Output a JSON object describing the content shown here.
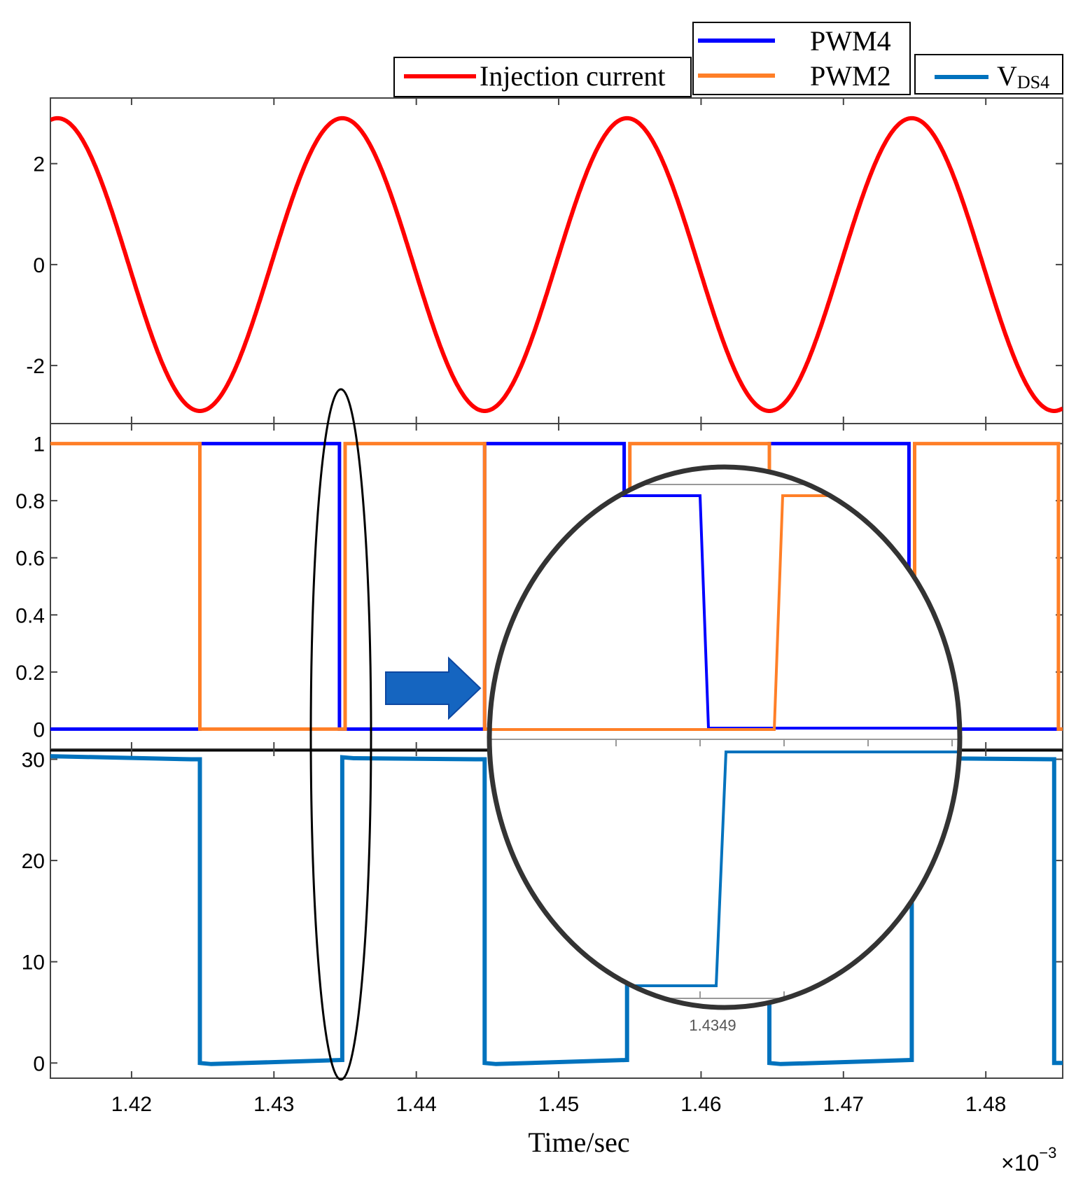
{
  "chart_data": {
    "type": "line",
    "xlabel": "Time/sec",
    "x_exponent_label": "×10",
    "x_exponent_power": "−3",
    "xlim": [
      1.4143,
      1.4854
    ],
    "x_ticks": [
      1.42,
      1.43,
      1.44,
      1.45,
      1.46,
      1.47,
      1.48
    ],
    "x_tick_labels": [
      "1.42",
      "1.43",
      "1.44",
      "1.45",
      "1.46",
      "1.47",
      "1.48"
    ],
    "period": 0.02,
    "panels": [
      {
        "name": "injection-current",
        "ylim": [
          -3.15,
          3.3
        ],
        "y_ticks": [
          -2,
          0,
          2
        ],
        "y_tick_labels": [
          "-2",
          "0",
          "2"
        ],
        "series": [
          {
            "name": "Injection current",
            "color": "#ff0000",
            "peak_times": [
              1.4348,
              1.4548,
              1.4748
            ],
            "trough_times": [
              1.4248,
              1.4448,
              1.4648,
              1.4848
            ],
            "amplitude": 2.9
          }
        ]
      },
      {
        "name": "pwm",
        "ylim": [
          -0.07,
          1.07
        ],
        "y_ticks": [
          0,
          0.2,
          0.4,
          0.6,
          0.8,
          1
        ],
        "y_tick_labels": [
          "0",
          "0.2",
          "0.4",
          "0.6",
          "0.8",
          "1"
        ],
        "series": [
          {
            "name": "PWM4",
            "color": "#0000ff",
            "high_intervals": [
              [
                1.4248,
                1.4346
              ],
              [
                1.4448,
                1.4546
              ],
              [
                1.4648,
                1.4746
              ]
            ]
          },
          {
            "name": "PWM2",
            "color": "#ff7f27",
            "high_intervals": [
              [
                1.4143,
                1.4248
              ],
              [
                1.435,
                1.4448
              ],
              [
                1.455,
                1.4648
              ],
              [
                1.475,
                1.4851
              ]
            ]
          }
        ]
      },
      {
        "name": "vds4",
        "ylim": [
          -1.5,
          31.0
        ],
        "y_ticks": [
          0,
          10,
          20,
          30
        ],
        "y_tick_labels": [
          "0",
          "10",
          "20",
          "30"
        ],
        "series": [
          {
            "name": "VDS4",
            "color": "#0072bd",
            "high_value": 30,
            "low_value": 0,
            "low_intervals": [
              [
                1.4248,
                1.4348
              ],
              [
                1.4448,
                1.4548
              ],
              [
                1.4648,
                1.4748
              ]
            ]
          }
        ]
      }
    ],
    "legends": [
      {
        "label": "Injection current",
        "color": "#ff0000"
      },
      {
        "label": "PWM4",
        "color": "#0000ff"
      },
      {
        "label": "PWM2",
        "color": "#ff7f27"
      },
      {
        "label_main": "V",
        "label_sub": "DS4",
        "color": "#0072bd"
      }
    ],
    "annotations": {
      "zoom_tick_label": "1.4349"
    }
  }
}
